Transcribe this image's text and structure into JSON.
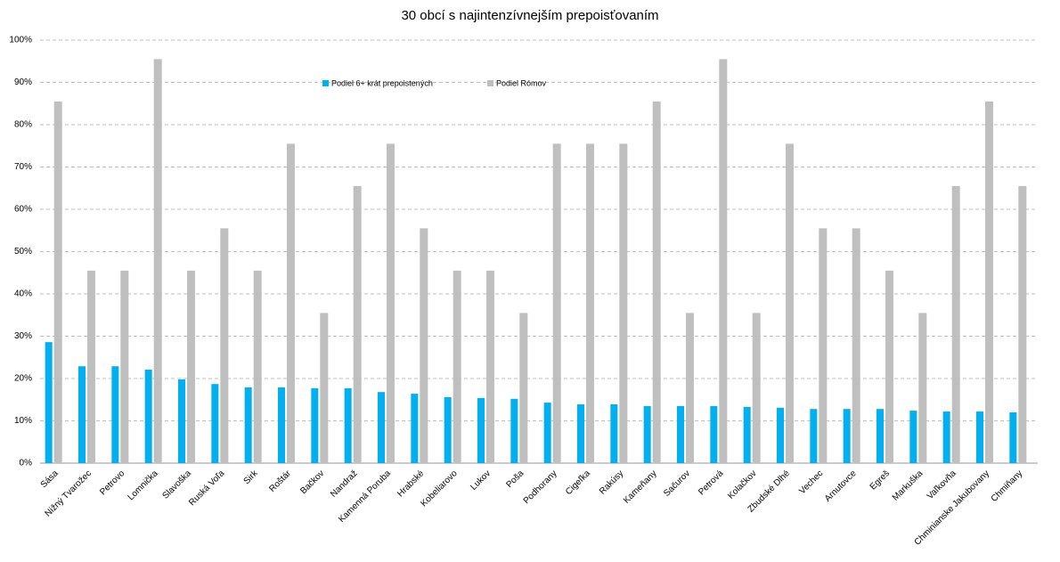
{
  "chart_data": {
    "type": "bar",
    "title": "30 obcí s najintenzívnejším prepoisťovaním",
    "categories": [
      "Sása",
      "Nižný Tvarožec",
      "Petrovo",
      "Lomnička",
      "Slavoška",
      "Ruská Voľa",
      "Sirk",
      "Roštár",
      "Bačkov",
      "Nandraž",
      "Kamenná Poruba",
      "Hrabské",
      "Kobeliarovo",
      "Lukov",
      "Poša",
      "Podhorany",
      "Cigeľka",
      "Rakúsy",
      "Kameňany",
      "Sačurov",
      "Petrová",
      "Kolačkov",
      "Zbudské Dlhé",
      "Vechec",
      "Arnutovce",
      "Egreš",
      "Markuška",
      "Vaľkovňa",
      "Chminianske Jakubovany",
      "Chmiňany"
    ],
    "series": [
      {
        "name": "Podiel 6+ krát prepoistených",
        "color": "#00b0f0",
        "values": [
          28.6,
          22.9,
          22.9,
          22.1,
          19.8,
          18.7,
          17.9,
          17.9,
          17.7,
          17.7,
          16.8,
          16.4,
          15.6,
          15.4,
          15.2,
          14.3,
          13.9,
          13.9,
          13.5,
          13.5,
          13.5,
          13.3,
          13.1,
          12.8,
          12.8,
          12.8,
          12.4,
          12.2,
          12.2,
          12.0
        ]
      },
      {
        "name": "Podiel Rómov",
        "color": "#bfbfbf",
        "values": [
          85.5,
          45.5,
          45.5,
          95.5,
          45.5,
          55.5,
          45.5,
          75.5,
          35.5,
          65.5,
          75.5,
          55.5,
          45.5,
          45.5,
          35.5,
          75.5,
          75.5,
          75.5,
          85.5,
          35.5,
          95.5,
          35.5,
          75.5,
          55.5,
          55.5,
          45.5,
          35.5,
          65.5,
          85.5,
          65.5
        ]
      }
    ],
    "ylim": [
      0,
      100
    ],
    "yticks": [
      {
        "value": 0,
        "label": "0%"
      },
      {
        "value": 10,
        "label": "10%"
      },
      {
        "value": 20,
        "label": "20%"
      },
      {
        "value": 30,
        "label": "30%"
      },
      {
        "value": 40,
        "label": "40%"
      },
      {
        "value": 50,
        "label": "50%"
      },
      {
        "value": 60,
        "label": "60%"
      },
      {
        "value": 70,
        "label": "70%"
      },
      {
        "value": 80,
        "label": "80%"
      },
      {
        "value": 90,
        "label": "90%"
      },
      {
        "value": 100,
        "label": "100%"
      }
    ],
    "grid": true,
    "legend": "top"
  }
}
